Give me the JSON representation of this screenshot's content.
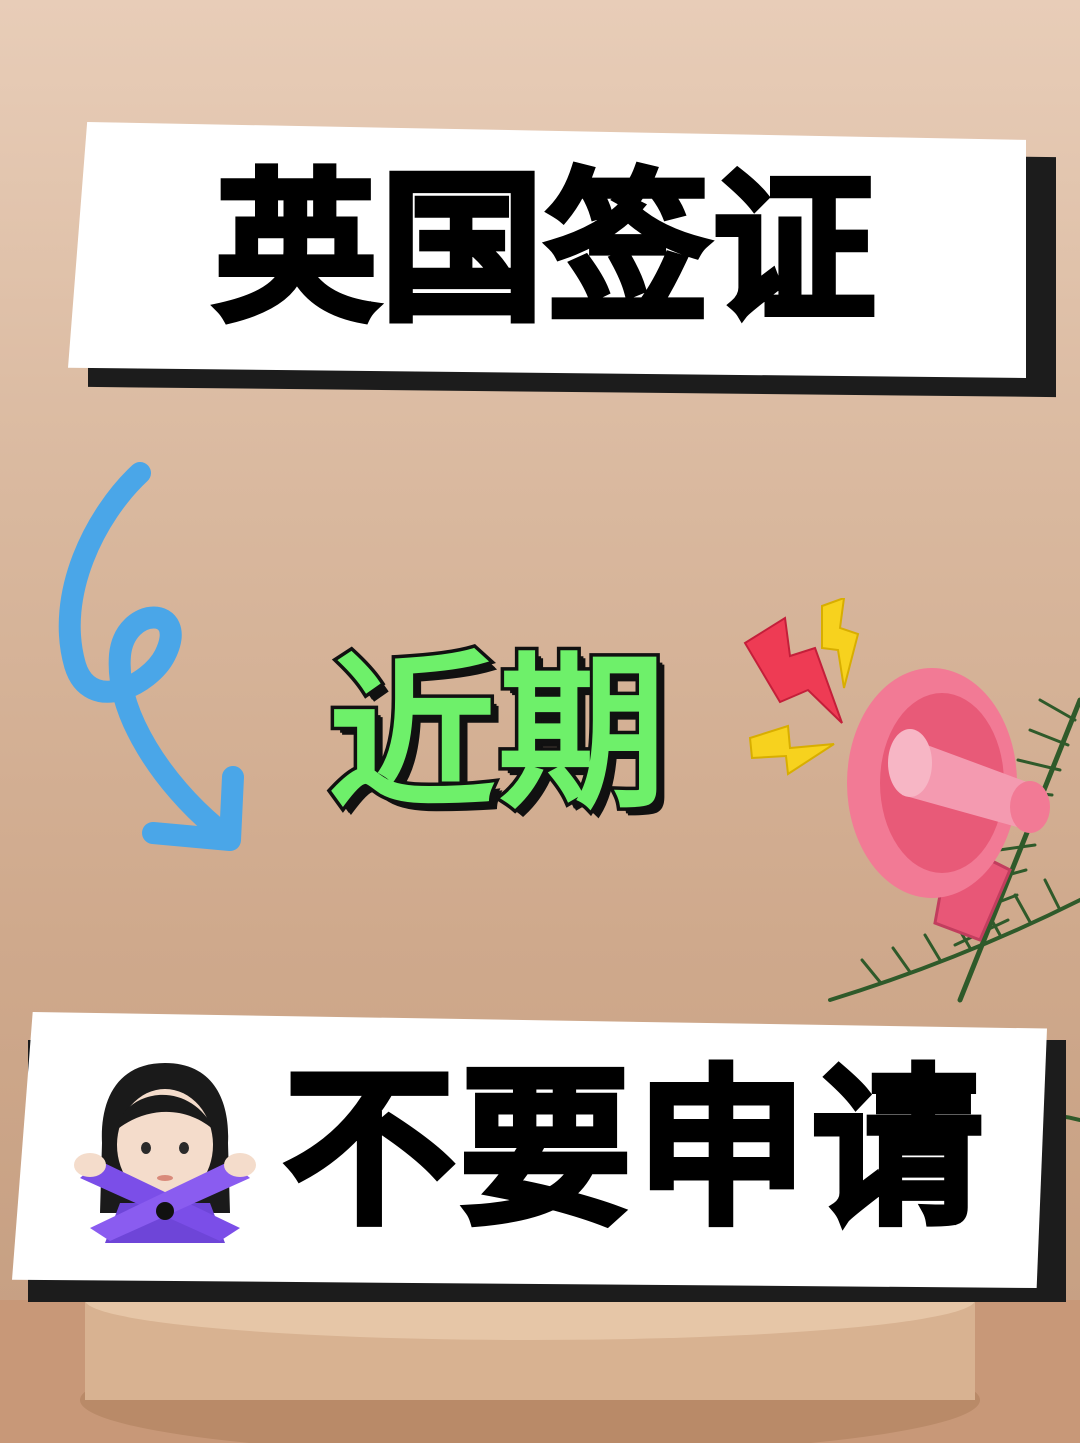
{
  "headline": {
    "text": "英国签证"
  },
  "subheadline": {
    "text": "近期"
  },
  "footer_banner": {
    "text": "不要申请"
  },
  "icons": {
    "arrow": "curly-arrow-icon",
    "megaphone": "megaphone-icon",
    "lightning": "lightning-bolt-icon",
    "person": "woman-gesturing-no-icon",
    "plant": "palm-leaf-icon"
  },
  "colors": {
    "background": "#d9b89e",
    "banner_face": "#ffffff",
    "banner_shadow": "#1c1c1c",
    "mid_text": "#6ef06a",
    "arrow": "#4aa6e8",
    "megaphone": "#f06a86",
    "bolt_red": "#ee3b54",
    "bolt_yellow": "#f7d21e",
    "person_top": "#7b4ee8"
  }
}
